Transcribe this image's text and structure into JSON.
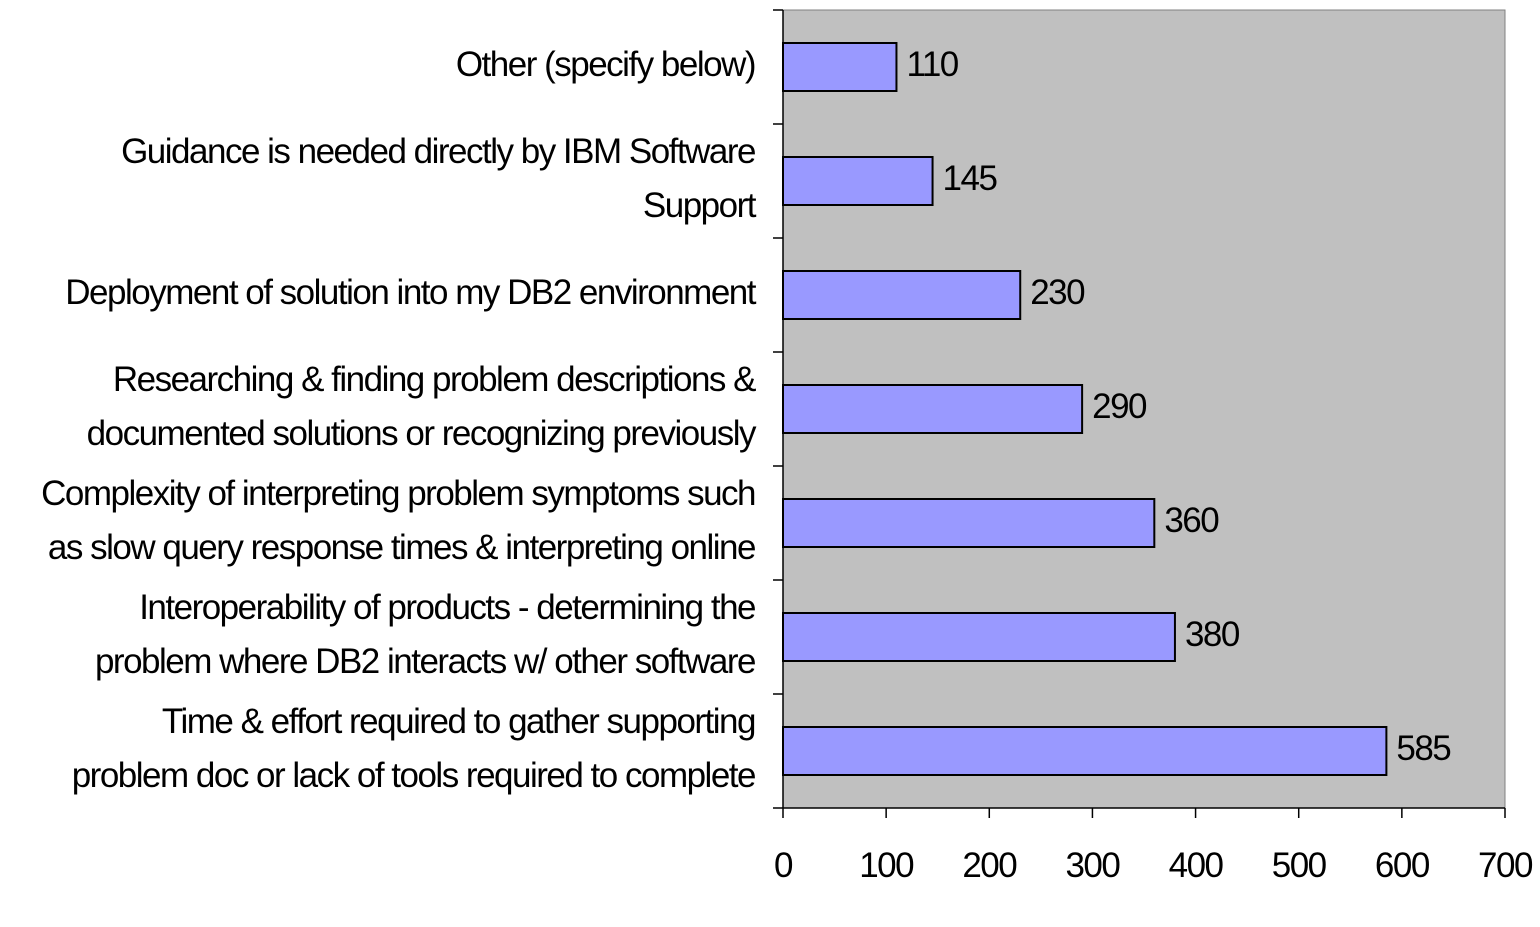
{
  "chart_data": {
    "type": "barh",
    "categories": [
      "Other (specify below)",
      "Guidance is needed directly by IBM Software\nSupport",
      "Deployment of solution into my DB2 environment",
      "Researching & finding problem descriptions &\ndocumented solutions or recognizing previously",
      "Complexity of interpreting problem symptoms such\nas slow query response times & interpreting online",
      "Interoperability of products - determining the\nproblem where DB2 interacts w/ other software",
      "Time & effort required to gather supporting\nproblem doc or lack of tools required to complete"
    ],
    "values": [
      110,
      145,
      230,
      290,
      360,
      380,
      585
    ],
    "color": "#9999ff",
    "xlim": [
      0,
      700
    ],
    "xticks": [
      0,
      100,
      200,
      300,
      400,
      500,
      600,
      700
    ]
  }
}
